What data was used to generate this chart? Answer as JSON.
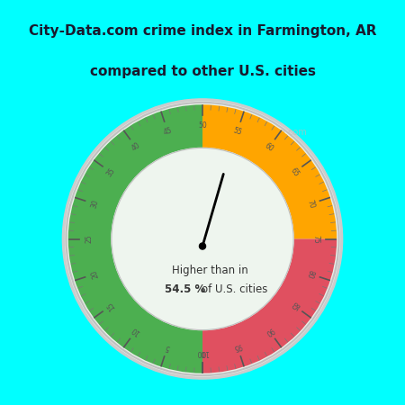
{
  "title_line1": "City-Data.com crime index in Farmington, AR",
  "title_line2": "compared to other U.S. cities",
  "title_bg": "#00FFFF",
  "fig_bg": "#00FFFF",
  "gauge_bg": "#dff5e3",
  "center_text1": "Higher than in",
  "center_text2": "54.5 %",
  "center_text3": "of U.S. cities",
  "needle_value": 54.5,
  "green_range": [
    0,
    50
  ],
  "orange_range": [
    50,
    75
  ],
  "red_range": [
    75,
    100
  ],
  "green_color": "#4CAF50",
  "orange_color": "#FFA500",
  "red_color": "#E05060",
  "watermark": "City-Data.com"
}
